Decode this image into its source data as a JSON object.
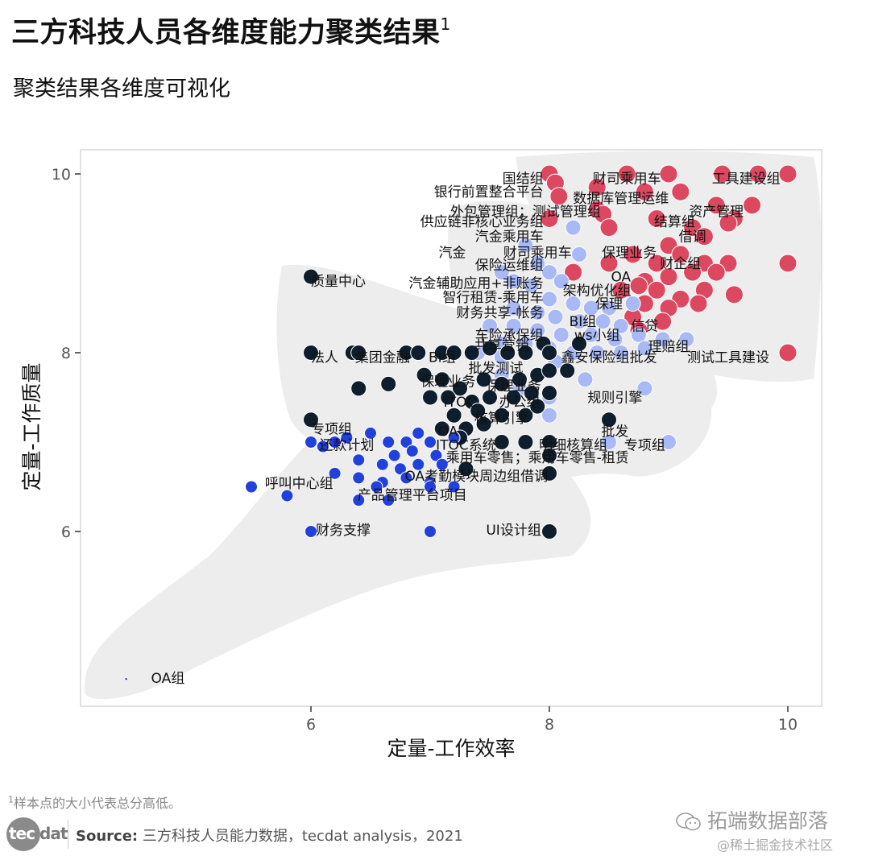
{
  "header": {
    "title": "三方科技人员各维度能力聚类结果",
    "title_sup": "1",
    "subtitle": "聚类结果各维度可视化"
  },
  "footer": {
    "footnote_sup": "1",
    "footnote": "样本点的大小代表总分高低。",
    "logo_left": "tec",
    "logo_right": "dat",
    "source_label": "Source:",
    "source_text": " 三方科技人员能力数据，tecdat analysis，2021",
    "watermark_main": "拓端数据部落",
    "watermark_sub": "@稀土掘金技术社区"
  },
  "chart_data": {
    "type": "scatter",
    "title": "聚类结果各维度可视化",
    "xlabel": "定量-工作效率",
    "ylabel": "定量-工作质量",
    "xlim": [
      4.43,
      10.3
    ],
    "ylim": [
      4.3,
      10.35
    ],
    "xticks": [
      6,
      8,
      10
    ],
    "yticks": [
      6,
      8,
      10
    ],
    "grid": false,
    "legend": "none",
    "note": "Point size represents total score; background shaded hulls mark clusters",
    "colors": {
      "cluster_red": "#dc4860",
      "cluster_lightblue": "#a8b9f5",
      "cluster_navy": "#0e1e2c",
      "cluster_blue": "#2241dc",
      "hull": "#ededed"
    },
    "series": [
      {
        "name": "cluster-red",
        "color": "#dc4860",
        "points": [
          [
            8,
            10
          ],
          [
            8.65,
            10
          ],
          [
            9.0,
            10
          ],
          [
            9.45,
            10
          ],
          [
            9.75,
            10
          ],
          [
            10,
            10
          ],
          [
            8.05,
            9.9
          ],
          [
            8.08,
            9.75
          ],
          [
            8.4,
            9.85
          ],
          [
            8.8,
            9.8
          ],
          [
            9.1,
            9.8
          ],
          [
            8.4,
            9.6
          ],
          [
            8.45,
            9.55
          ],
          [
            9.4,
            9.65
          ],
          [
            9.7,
            9.65
          ],
          [
            9.55,
            9.5
          ],
          [
            9.5,
            9.45
          ],
          [
            8.0,
            9.5
          ],
          [
            8.5,
            9.4
          ],
          [
            8.9,
            9.5
          ],
          [
            9.2,
            9.4
          ],
          [
            9.3,
            9.3
          ],
          [
            9.0,
            9.2
          ],
          [
            8.7,
            9.1
          ],
          [
            9.1,
            9.1
          ],
          [
            8.9,
            9.0
          ],
          [
            9.3,
            9.0
          ],
          [
            9.5,
            9.0
          ],
          [
            10,
            9.0
          ],
          [
            8.5,
            9.0
          ],
          [
            8.2,
            8.9
          ],
          [
            8.8,
            8.8
          ],
          [
            9.0,
            8.85
          ],
          [
            9.2,
            8.9
          ],
          [
            9.4,
            8.9
          ],
          [
            8.6,
            8.7
          ],
          [
            8.75,
            8.75
          ],
          [
            8.9,
            8.7
          ],
          [
            9.1,
            8.6
          ],
          [
            9.3,
            8.7
          ],
          [
            9.55,
            8.65
          ],
          [
            8.8,
            8.55
          ],
          [
            9.0,
            8.5
          ],
          [
            9.25,
            8.55
          ],
          [
            8.7,
            8.4
          ],
          [
            8.95,
            8.35
          ],
          [
            8.75,
            8.25
          ],
          [
            10,
            8.0
          ]
        ]
      },
      {
        "name": "cluster-lightblue",
        "color": "#a8b9f5",
        "points": [
          [
            8.2,
            9.4
          ],
          [
            7.8,
            9.2
          ],
          [
            8.25,
            9.1
          ],
          [
            7.9,
            9.0
          ],
          [
            8.0,
            8.9
          ],
          [
            8.1,
            8.8
          ],
          [
            7.6,
            8.9
          ],
          [
            7.7,
            8.8
          ],
          [
            7.85,
            8.75
          ],
          [
            8.0,
            8.6
          ],
          [
            8.2,
            8.55
          ],
          [
            8.35,
            8.5
          ],
          [
            8.5,
            8.5
          ],
          [
            8.7,
            8.55
          ],
          [
            7.7,
            8.5
          ],
          [
            7.9,
            8.45
          ],
          [
            8.05,
            8.4
          ],
          [
            8.25,
            8.35
          ],
          [
            8.45,
            8.35
          ],
          [
            8.6,
            8.3
          ],
          [
            7.5,
            8.3
          ],
          [
            7.7,
            8.3
          ],
          [
            7.9,
            8.25
          ],
          [
            8.1,
            8.2
          ],
          [
            8.35,
            8.2
          ],
          [
            8.55,
            8.15
          ],
          [
            8.75,
            8.2
          ],
          [
            8.95,
            8.15
          ],
          [
            7.6,
            8.1
          ],
          [
            7.8,
            8.1
          ],
          [
            8.0,
            8.05
          ],
          [
            8.2,
            8.0
          ],
          [
            8.4,
            8.0
          ],
          [
            8.6,
            8.0
          ],
          [
            8.8,
            8.05
          ],
          [
            9.15,
            8.15
          ],
          [
            7.4,
            8.0
          ],
          [
            7.6,
            7.95
          ],
          [
            8.05,
            7.9
          ],
          [
            8.3,
            7.7
          ],
          [
            8.8,
            7.6
          ],
          [
            9.0,
            7.0
          ],
          [
            8.0,
            7.5
          ],
          [
            8.0,
            7.3
          ],
          [
            7.6,
            7.75
          ],
          [
            7.75,
            7.6
          ],
          [
            8.5,
            7.0
          ]
        ]
      },
      {
        "name": "cluster-navy",
        "color": "#0e1e2c",
        "points": [
          [
            6,
            8.85
          ],
          [
            6,
            8.0
          ],
          [
            6.35,
            8.0
          ],
          [
            6.4,
            8.0
          ],
          [
            6.8,
            8.0
          ],
          [
            6.9,
            8.0
          ],
          [
            7.1,
            8.0
          ],
          [
            7.2,
            8.0
          ],
          [
            7.35,
            8.0
          ],
          [
            7.5,
            8.05
          ],
          [
            7.65,
            8.0
          ],
          [
            7.8,
            8.0
          ],
          [
            7.95,
            8.1
          ],
          [
            8.0,
            8.0
          ],
          [
            8.25,
            8.1
          ],
          [
            6.4,
            7.6
          ],
          [
            6.65,
            7.65
          ],
          [
            6.95,
            7.75
          ],
          [
            7.1,
            7.7
          ],
          [
            7.25,
            7.6
          ],
          [
            7.45,
            7.7
          ],
          [
            7.6,
            7.65
          ],
          [
            7.75,
            7.7
          ],
          [
            7.9,
            7.75
          ],
          [
            8.0,
            7.8
          ],
          [
            8.15,
            7.8
          ],
          [
            7.0,
            7.5
          ],
          [
            7.15,
            7.5
          ],
          [
            7.35,
            7.45
          ],
          [
            7.5,
            7.5
          ],
          [
            7.7,
            7.5
          ],
          [
            7.85,
            7.55
          ],
          [
            8.0,
            7.55
          ],
          [
            7.2,
            7.3
          ],
          [
            7.4,
            7.35
          ],
          [
            7.6,
            7.3
          ],
          [
            7.8,
            7.3
          ],
          [
            7.9,
            7.4
          ],
          [
            7.1,
            7.15
          ],
          [
            7.3,
            7.15
          ],
          [
            7.45,
            7.2
          ],
          [
            7.25,
            7.05
          ],
          [
            7.6,
            7.0
          ],
          [
            7.8,
            7.0
          ],
          [
            8.0,
            7.0
          ],
          [
            8.5,
            7.25
          ],
          [
            6.0,
            7.25
          ],
          [
            8.0,
            6.85
          ],
          [
            8.0,
            6.65
          ],
          [
            7.3,
            6.7
          ],
          [
            8.0,
            6.0
          ]
        ]
      },
      {
        "name": "cluster-blue",
        "color": "#2241dc",
        "points": [
          [
            6.0,
            7.0
          ],
          [
            6.1,
            6.95
          ],
          [
            6.2,
            7.0
          ],
          [
            6.3,
            7.05
          ],
          [
            6.5,
            7.1
          ],
          [
            6.65,
            7.0
          ],
          [
            6.8,
            7.0
          ],
          [
            6.9,
            7.1
          ],
          [
            7.0,
            7.0
          ],
          [
            7.2,
            7.05
          ],
          [
            6.4,
            6.8
          ],
          [
            6.7,
            6.85
          ],
          [
            6.85,
            6.9
          ],
          [
            7.05,
            6.85
          ],
          [
            6.6,
            6.75
          ],
          [
            6.75,
            6.7
          ],
          [
            6.9,
            6.75
          ],
          [
            7.1,
            6.75
          ],
          [
            6.6,
            6.55
          ],
          [
            6.8,
            6.6
          ],
          [
            7.0,
            6.55
          ],
          [
            7.2,
            6.5
          ],
          [
            6.4,
            6.6
          ],
          [
            6.55,
            6.5
          ],
          [
            6.2,
            6.65
          ],
          [
            5.5,
            6.5
          ],
          [
            5.8,
            6.4
          ],
          [
            6.4,
            6.35
          ],
          [
            6.65,
            6.35
          ],
          [
            7.0,
            6.5
          ],
          [
            6.0,
            6.0
          ],
          [
            7.0,
            6.0
          ],
          [
            4.45,
            4.35
          ]
        ]
      }
    ],
    "annotations": [
      {
        "text": "国结组",
        "x": 7.95,
        "y": 9.95,
        "anchor": "end"
      },
      {
        "text": "财司乘用车",
        "x": 8.65,
        "y": 9.95,
        "anchor": "middle"
      },
      {
        "text": "工具建设组",
        "x": 9.65,
        "y": 9.95,
        "anchor": "middle"
      },
      {
        "text": "银行前置整合平台",
        "x": 7.95,
        "y": 9.8,
        "anchor": "end"
      },
      {
        "text": "数据库管理运维",
        "x": 8.6,
        "y": 9.73,
        "anchor": "middle"
      },
      {
        "text": "外包管理组；测试管理组",
        "x": 7.8,
        "y": 9.58,
        "anchor": "middle"
      },
      {
        "text": "资产管理",
        "x": 9.4,
        "y": 9.58,
        "anchor": "middle"
      },
      {
        "text": "供应链非核心业务组",
        "x": 7.95,
        "y": 9.47,
        "anchor": "end"
      },
      {
        "text": "结算组",
        "x": 9.05,
        "y": 9.47,
        "anchor": "middle"
      },
      {
        "text": "借调",
        "x": 9.2,
        "y": 9.3,
        "anchor": "middle"
      },
      {
        "text": "汽金乘用车",
        "x": 7.95,
        "y": 9.3,
        "anchor": "end"
      },
      {
        "text": "汽金",
        "x": 7.3,
        "y": 9.12,
        "anchor": "end"
      },
      {
        "text": "财司乘用车",
        "x": 7.9,
        "y": 9.12,
        "anchor": "middle"
      },
      {
        "text": "保理业务",
        "x": 8.67,
        "y": 9.12,
        "anchor": "middle"
      },
      {
        "text": "保险运维组",
        "x": 7.95,
        "y": 8.98,
        "anchor": "end"
      },
      {
        "text": "财企组",
        "x": 9.1,
        "y": 9.0,
        "anchor": "middle"
      },
      {
        "text": "质量中心",
        "x": 6.0,
        "y": 8.8,
        "anchor": "start"
      },
      {
        "text": "汽金辅助应用+非账务",
        "x": 7.95,
        "y": 8.78,
        "anchor": "end"
      },
      {
        "text": "OA",
        "x": 8.6,
        "y": 8.85,
        "anchor": "middle"
      },
      {
        "text": "架构优化组",
        "x": 8.4,
        "y": 8.7,
        "anchor": "middle"
      },
      {
        "text": "智行租赁-乘用车",
        "x": 7.95,
        "y": 8.62,
        "anchor": "end"
      },
      {
        "text": "保理",
        "x": 8.5,
        "y": 8.55,
        "anchor": "middle"
      },
      {
        "text": "财务共享-帐务",
        "x": 7.95,
        "y": 8.45,
        "anchor": "end"
      },
      {
        "text": "BI组",
        "x": 8.28,
        "y": 8.35,
        "anchor": "middle"
      },
      {
        "text": "信贷",
        "x": 8.8,
        "y": 8.3,
        "anchor": "middle"
      },
      {
        "text": "车险承保组",
        "x": 7.95,
        "y": 8.2,
        "anchor": "end"
      },
      {
        "text": "ws小组",
        "x": 8.4,
        "y": 8.2,
        "anchor": "middle"
      },
      {
        "text": "理赔组",
        "x": 9.0,
        "y": 8.07,
        "anchor": "middle"
      },
      {
        "text": "共享营销",
        "x": 7.6,
        "y": 8.08,
        "anchor": "middle"
      },
      {
        "text": "法人",
        "x": 6.0,
        "y": 7.95,
        "anchor": "start"
      },
      {
        "text": "集团金融",
        "x": 6.6,
        "y": 7.95,
        "anchor": "middle"
      },
      {
        "text": "BI组",
        "x": 7.1,
        "y": 7.95,
        "anchor": "middle"
      },
      {
        "text": "鑫安保险组批发",
        "x": 8.5,
        "y": 7.95,
        "anchor": "middle"
      },
      {
        "text": "测试工具建设",
        "x": 9.5,
        "y": 7.95,
        "anchor": "middle"
      },
      {
        "text": "批发测试",
        "x": 7.55,
        "y": 7.83,
        "anchor": "middle"
      },
      {
        "text": "保理业务",
        "x": 7.15,
        "y": 7.68,
        "anchor": "middle"
      },
      {
        "text": "保理业务",
        "x": 7.7,
        "y": 7.63,
        "anchor": "middle"
      },
      {
        "text": "规则引擎",
        "x": 8.55,
        "y": 7.5,
        "anchor": "middle"
      },
      {
        "text": "ITOC",
        "x": 7.25,
        "y": 7.45,
        "anchor": "middle"
      },
      {
        "text": "办公组",
        "x": 7.75,
        "y": 7.45,
        "anchor": "middle"
      },
      {
        "text": "核算引擎",
        "x": 7.6,
        "y": 7.27,
        "anchor": "middle"
      },
      {
        "text": "专项组",
        "x": 6.0,
        "y": 7.15,
        "anchor": "start"
      },
      {
        "text": "OA",
        "x": 7.15,
        "y": 7.12,
        "anchor": "middle"
      },
      {
        "text": "批发",
        "x": 8.55,
        "y": 7.12,
        "anchor": "middle"
      },
      {
        "text": "还款计划",
        "x": 6.3,
        "y": 6.97,
        "anchor": "middle"
      },
      {
        "text": "ITOC系统",
        "x": 7.3,
        "y": 6.97,
        "anchor": "middle"
      },
      {
        "text": "明细核算组",
        "x": 8.2,
        "y": 6.97,
        "anchor": "middle"
      },
      {
        "text": "专项组",
        "x": 8.8,
        "y": 6.97,
        "anchor": "middle"
      },
      {
        "text": "乘用车零售；乘用车零售-租赁",
        "x": 7.9,
        "y": 6.83,
        "anchor": "middle"
      },
      {
        "text": "OA考勤模块",
        "x": 7.1,
        "y": 6.62,
        "anchor": "middle"
      },
      {
        "text": "周边组借调",
        "x": 7.7,
        "y": 6.62,
        "anchor": "middle"
      },
      {
        "text": "呼叫中心组",
        "x": 5.9,
        "y": 6.54,
        "anchor": "middle"
      },
      {
        "text": "产品管理平台项目",
        "x": 6.85,
        "y": 6.41,
        "anchor": "middle"
      },
      {
        "text": "财务支撑",
        "x": 6.27,
        "y": 6.02,
        "anchor": "middle"
      },
      {
        "text": "UI设计组",
        "x": 7.7,
        "y": 6.02,
        "anchor": "middle"
      },
      {
        "text": "OA组",
        "x": 4.8,
        "y": 4.36,
        "anchor": "middle"
      }
    ]
  }
}
